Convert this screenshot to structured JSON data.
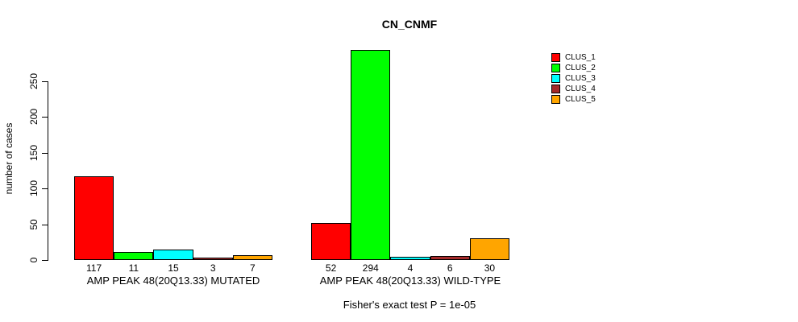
{
  "chart_data": {
    "type": "bar",
    "title": "CN_CNMF",
    "ylabel": "number of cases",
    "xlabel": "",
    "ylim": [
      0,
      250
    ],
    "yticks": [
      "0",
      "50",
      "100",
      "150",
      "200",
      "250"
    ],
    "grid": false,
    "legend_position": "top-right",
    "bar_border_color": "#000000",
    "series": [
      {
        "name": "CLUS_1",
        "color": "#FF0000"
      },
      {
        "name": "CLUS_2",
        "color": "#00FF00"
      },
      {
        "name": "CLUS_3",
        "color": "#00FFFF"
      },
      {
        "name": "CLUS_4",
        "color": "#A52A2A"
      },
      {
        "name": "CLUS_5",
        "color": "#FFA500"
      }
    ],
    "groups": [
      {
        "label": "AMP PEAK 48(20Q13.33) MUTATED",
        "values": [
          117,
          11,
          15,
          3,
          7
        ]
      },
      {
        "label": "AMP PEAK 48(20Q13.33) WILD-TYPE",
        "values": [
          52,
          294,
          4,
          6,
          30
        ]
      }
    ],
    "annotation": "Fisher's exact test P = 1e-05"
  }
}
